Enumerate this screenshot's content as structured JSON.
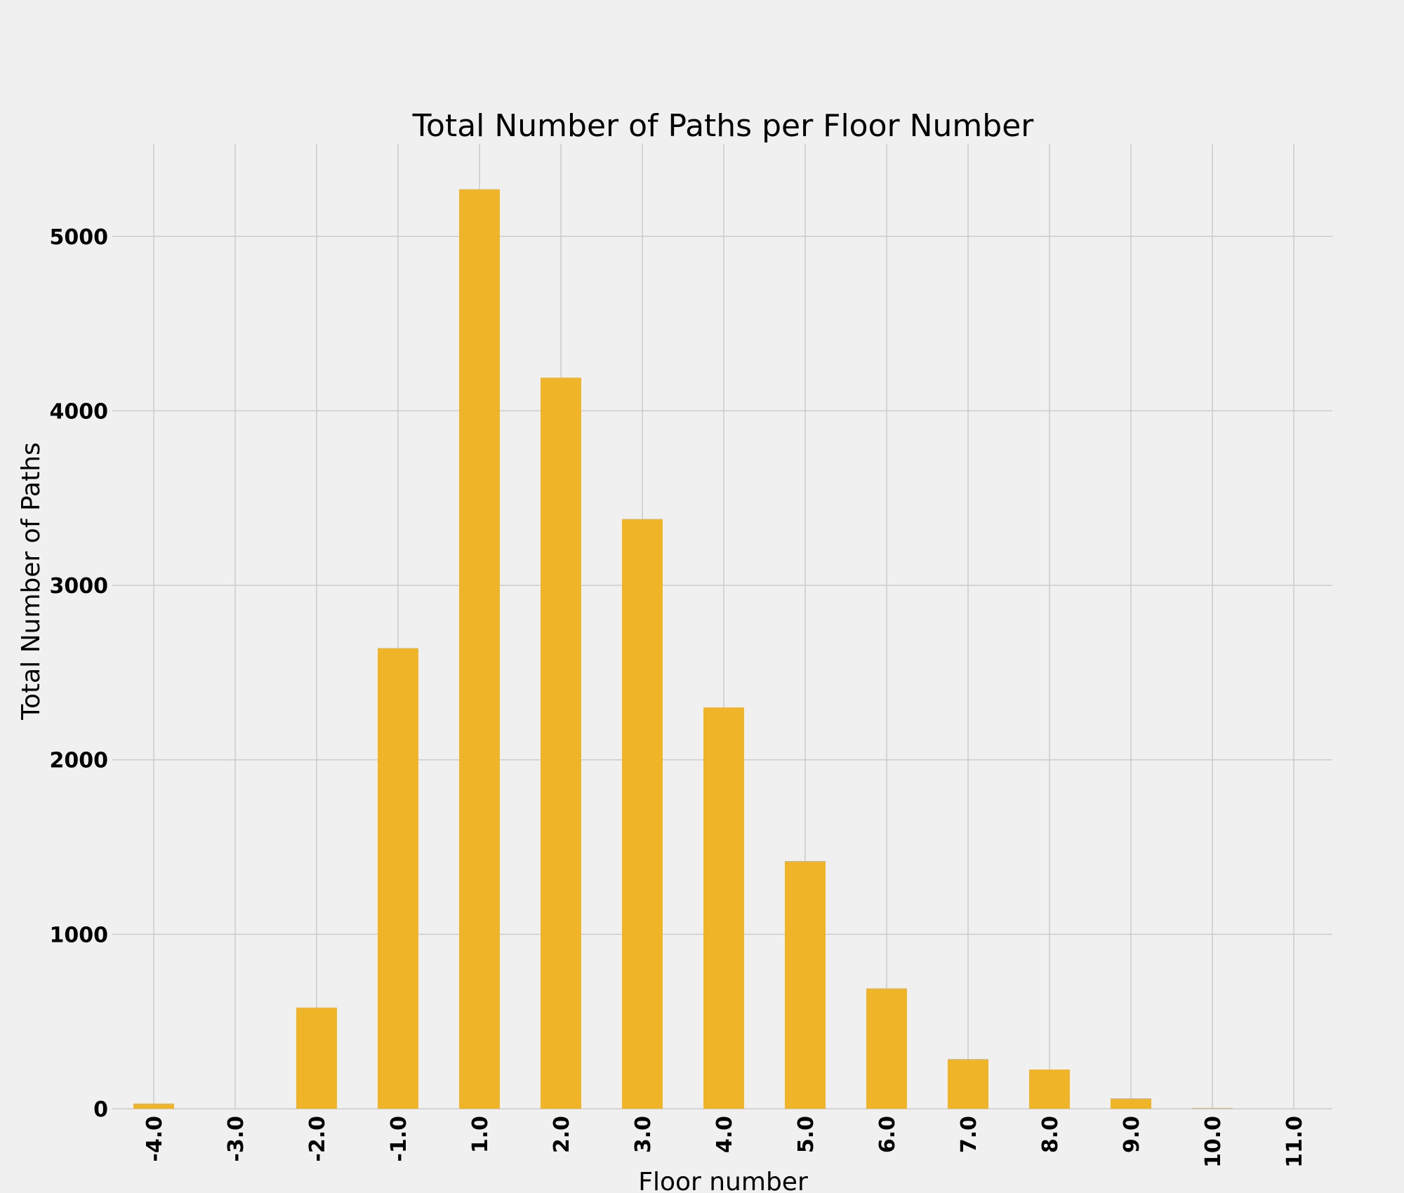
{
  "chart_data": {
    "type": "bar",
    "title": "Total Number of Paths per Floor Number",
    "xlabel": "Floor number",
    "ylabel": "Total Number of Paths",
    "categories": [
      "-4.0",
      "-3.0",
      "-2.0",
      "-1.0",
      "1.0",
      "2.0",
      "3.0",
      "4.0",
      "5.0",
      "6.0",
      "7.0",
      "8.0",
      "9.0",
      "10.0",
      "11.0"
    ],
    "values": [
      30,
      0,
      580,
      2640,
      5270,
      4190,
      3380,
      2300,
      1420,
      690,
      285,
      225,
      60,
      5,
      0
    ],
    "ylim": [
      0,
      5530
    ],
    "yticks": [
      0,
      1000,
      2000,
      3000,
      4000,
      5000
    ],
    "grid": true,
    "bar_color": "#f0b429",
    "grid_color": "#cbcbcb",
    "background_color": "#f0f0f0"
  }
}
